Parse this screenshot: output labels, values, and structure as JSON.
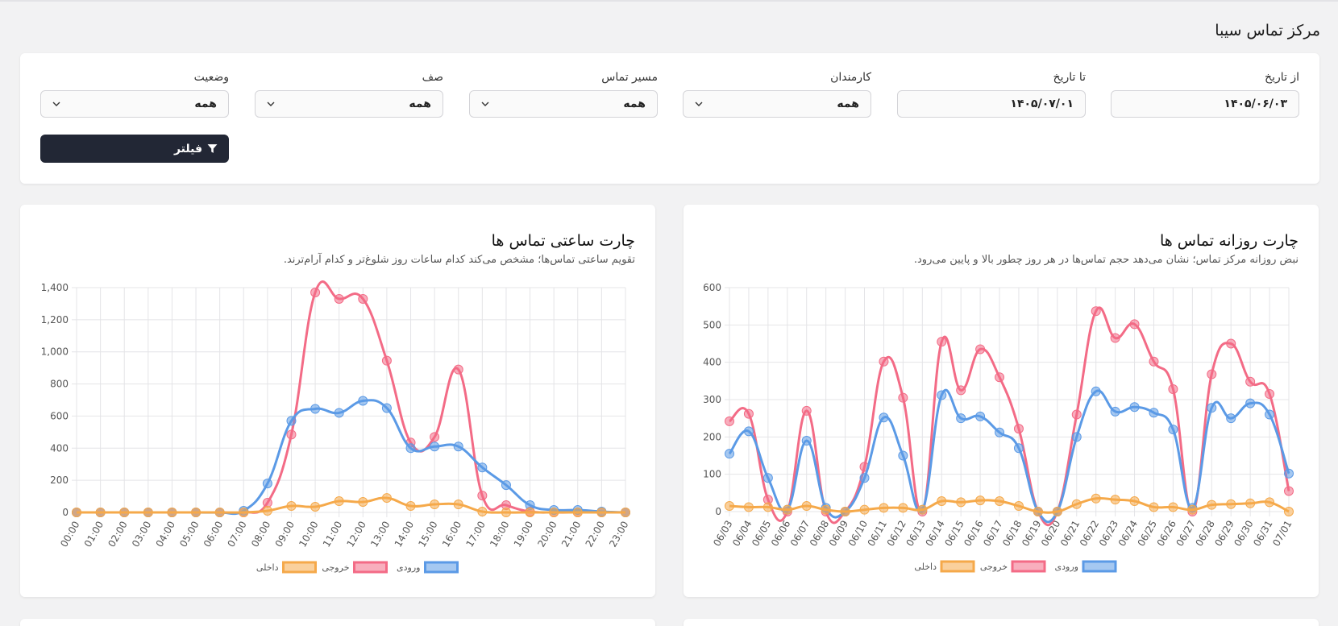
{
  "page_title": "مرکز تماس سیبا",
  "filters": {
    "from_date": {
      "label": "از تاریخ",
      "value": "۱۴۰۵/۰۶/۰۳"
    },
    "to_date": {
      "label": "تا تاریخ",
      "value": "۱۴۰۵/۰۷/۰۱"
    },
    "employees": {
      "label": "کارمندان",
      "value": "همه"
    },
    "call_route": {
      "label": "مسیر تماس",
      "value": "همه"
    },
    "queue": {
      "label": "صف",
      "value": "همه"
    },
    "status": {
      "label": "وضعیت",
      "value": "همه"
    },
    "filter_button": "فیلتر"
  },
  "colors": {
    "incoming": "#5b9ae6",
    "outgoing": "#f36b86",
    "internal": "#f5a94a",
    "button_bg": "#222735"
  },
  "daily_chart": {
    "title": "چارت روزانه تماس ها",
    "subtitle": "نبض روزانه مرکز تماس؛ نشان می‌دهد حجم تماس‌ها در هر روز چطور بالا و پایین می‌رود."
  },
  "hourly_chart": {
    "title": "چارت ساعتی تماس ها",
    "subtitle": "تقویم ساعتی تماس‌ها؛ مشخص می‌کند کدام ساعات روز شلوغ‌تر و کدام آرام‌ترند."
  },
  "chart_data": [
    {
      "type": "line",
      "ylim": [
        0,
        600
      ],
      "yticks": [
        0,
        100,
        200,
        300,
        400,
        500,
        600
      ],
      "grid": true,
      "legend": "bottom",
      "categories": [
        "06/03",
        "06/04",
        "06/05",
        "06/06",
        "06/07",
        "06/08",
        "06/09",
        "06/10",
        "06/11",
        "06/12",
        "06/13",
        "06/14",
        "06/15",
        "06/16",
        "06/17",
        "06/18",
        "06/19",
        "06/20",
        "06/21",
        "06/22",
        "06/23",
        "06/24",
        "06/25",
        "06/26",
        "06/27",
        "06/28",
        "06/29",
        "06/30",
        "06/31",
        "07/01"
      ],
      "series": [
        {
          "name": "ورودی",
          "color": "#5b9ae6",
          "values": [
            155,
            215,
            90,
            5,
            190,
            10,
            0,
            90,
            252,
            150,
            5,
            312,
            250,
            255,
            212,
            170,
            0,
            0,
            200,
            322,
            268,
            280,
            265,
            220,
            10,
            278,
            250,
            290,
            260,
            102
          ]
        },
        {
          "name": "خروجی",
          "color": "#f36b86",
          "values": [
            242,
            262,
            32,
            0,
            270,
            0,
            0,
            120,
            402,
            305,
            0,
            455,
            325,
            435,
            360,
            222,
            0,
            0,
            260,
            537,
            465,
            502,
            402,
            328,
            0,
            368,
            450,
            348,
            315,
            55
          ]
        },
        {
          "name": "داخلی",
          "color": "#f5a94a",
          "values": [
            15,
            12,
            12,
            5,
            15,
            5,
            0,
            5,
            10,
            10,
            5,
            28,
            25,
            30,
            28,
            15,
            0,
            0,
            20,
            35,
            32,
            28,
            12,
            12,
            5,
            18,
            20,
            22,
            25,
            0
          ]
        }
      ]
    },
    {
      "type": "line",
      "ylim": [
        0,
        1400
      ],
      "yticks": [
        0,
        200,
        400,
        600,
        800,
        1000,
        1200,
        1400
      ],
      "ytick_labels": [
        "0",
        "200",
        "400",
        "600",
        "800",
        "1,000",
        "1,200",
        "1,400"
      ],
      "grid": true,
      "legend": "bottom",
      "categories": [
        "00:00",
        "01:00",
        "02:00",
        "03:00",
        "04:00",
        "05:00",
        "06:00",
        "07:00",
        "08:00",
        "09:00",
        "10:00",
        "11:00",
        "12:00",
        "13:00",
        "14:00",
        "15:00",
        "16:00",
        "17:00",
        "18:00",
        "19:00",
        "20:00",
        "21:00",
        "22:00",
        "23:00"
      ],
      "series": [
        {
          "name": "ورودی",
          "color": "#5b9ae6",
          "values": [
            0,
            0,
            0,
            0,
            0,
            0,
            0,
            10,
            180,
            570,
            645,
            620,
            695,
            650,
            400,
            410,
            410,
            280,
            170,
            45,
            15,
            15,
            5,
            0
          ]
        },
        {
          "name": "خروجی",
          "color": "#f36b86",
          "values": [
            0,
            0,
            0,
            0,
            0,
            0,
            0,
            0,
            60,
            485,
            1370,
            1330,
            1330,
            945,
            435,
            470,
            890,
            105,
            45,
            5,
            0,
            0,
            0,
            0
          ]
        },
        {
          "name": "داخلی",
          "color": "#f5a94a",
          "values": [
            0,
            0,
            0,
            0,
            0,
            0,
            0,
            0,
            10,
            40,
            35,
            70,
            65,
            90,
            40,
            50,
            50,
            5,
            0,
            0,
            0,
            0,
            0,
            0
          ]
        }
      ]
    }
  ]
}
